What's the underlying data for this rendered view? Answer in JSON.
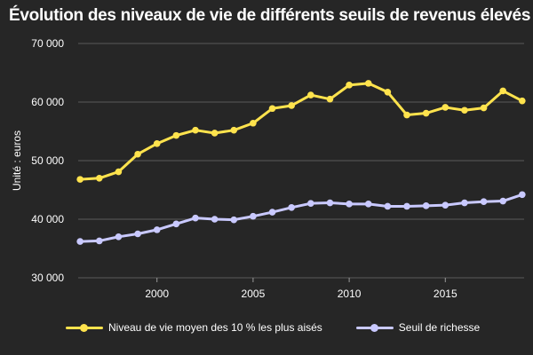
{
  "title": "Évolution des niveaux de vie de différents seuils de revenus élevés",
  "chart_data": {
    "type": "line",
    "title": "Évolution des niveaux de vie de différents seuils de revenus élevés",
    "xlabel": "",
    "ylabel": "Unité : euros",
    "x": [
      1996,
      1997,
      1998,
      1999,
      2000,
      2001,
      2002,
      2003,
      2004,
      2005,
      2006,
      2007,
      2008,
      2009,
      2010,
      2011,
      2012,
      2013,
      2014,
      2015,
      2016,
      2017,
      2018,
      2019
    ],
    "xlim": [
      1995.9,
      2019.1
    ],
    "ylim": [
      30000,
      70000
    ],
    "x_ticks": [
      2000,
      2005,
      2010,
      2015
    ],
    "x_tick_labels": [
      "2000",
      "2005",
      "2010",
      "2015"
    ],
    "y_ticks": [
      30000,
      40000,
      50000,
      60000,
      70000
    ],
    "y_tick_labels": [
      "30 000",
      "40 000",
      "50 000",
      "60 000",
      "70 000"
    ],
    "grid": "horizontal",
    "legend_position": "bottom",
    "series": [
      {
        "name": "Niveau de vie moyen des 10 % les plus aisés",
        "color": "#ffe34d",
        "values": [
          46800,
          47000,
          48100,
          51100,
          52900,
          54300,
          55200,
          54700,
          55200,
          56400,
          58900,
          59400,
          61200,
          60500,
          62900,
          63200,
          61700,
          57800,
          58100,
          59100,
          58600,
          59000,
          61900,
          60200
        ]
      },
      {
        "name": "Seuil de richesse",
        "color": "#c9c9ff",
        "values": [
          36200,
          36300,
          37000,
          37500,
          38200,
          39200,
          40200,
          40000,
          39900,
          40500,
          41200,
          42000,
          42700,
          42800,
          42600,
          42600,
          42200,
          42200,
          42300,
          42400,
          42800,
          43000,
          43100,
          44200
        ]
      }
    ]
  }
}
